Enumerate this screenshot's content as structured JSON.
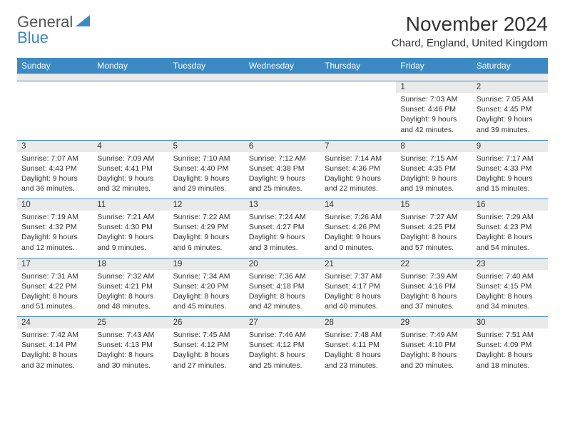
{
  "branding": {
    "logo_text_1": "General",
    "logo_text_2": "Blue",
    "logo_color_gray": "#555555",
    "logo_color_blue": "#3b8ac4"
  },
  "header": {
    "title": "November 2024",
    "location": "Chard, England, United Kingdom"
  },
  "style": {
    "header_bg": "#3b8ac4",
    "header_text": "#ffffff",
    "daynum_bg": "#eaeaea",
    "border_color": "#3b8ac4",
    "body_text": "#333333",
    "page_bg": "#ffffff",
    "title_fontsize": 28,
    "location_fontsize": 15,
    "dayheader_fontsize": 12,
    "daynum_fontsize": 11.5,
    "cell_fontsize": 10.5
  },
  "days_of_week": [
    "Sunday",
    "Monday",
    "Tuesday",
    "Wednesday",
    "Thursday",
    "Friday",
    "Saturday"
  ],
  "weeks": [
    [
      null,
      null,
      null,
      null,
      null,
      {
        "num": "1",
        "sunrise": "Sunrise: 7:03 AM",
        "sunset": "Sunset: 4:46 PM",
        "daylight1": "Daylight: 9 hours",
        "daylight2": "and 42 minutes."
      },
      {
        "num": "2",
        "sunrise": "Sunrise: 7:05 AM",
        "sunset": "Sunset: 4:45 PM",
        "daylight1": "Daylight: 9 hours",
        "daylight2": "and 39 minutes."
      }
    ],
    [
      {
        "num": "3",
        "sunrise": "Sunrise: 7:07 AM",
        "sunset": "Sunset: 4:43 PM",
        "daylight1": "Daylight: 9 hours",
        "daylight2": "and 36 minutes."
      },
      {
        "num": "4",
        "sunrise": "Sunrise: 7:09 AM",
        "sunset": "Sunset: 4:41 PM",
        "daylight1": "Daylight: 9 hours",
        "daylight2": "and 32 minutes."
      },
      {
        "num": "5",
        "sunrise": "Sunrise: 7:10 AM",
        "sunset": "Sunset: 4:40 PM",
        "daylight1": "Daylight: 9 hours",
        "daylight2": "and 29 minutes."
      },
      {
        "num": "6",
        "sunrise": "Sunrise: 7:12 AM",
        "sunset": "Sunset: 4:38 PM",
        "daylight1": "Daylight: 9 hours",
        "daylight2": "and 25 minutes."
      },
      {
        "num": "7",
        "sunrise": "Sunrise: 7:14 AM",
        "sunset": "Sunset: 4:36 PM",
        "daylight1": "Daylight: 9 hours",
        "daylight2": "and 22 minutes."
      },
      {
        "num": "8",
        "sunrise": "Sunrise: 7:15 AM",
        "sunset": "Sunset: 4:35 PM",
        "daylight1": "Daylight: 9 hours",
        "daylight2": "and 19 minutes."
      },
      {
        "num": "9",
        "sunrise": "Sunrise: 7:17 AM",
        "sunset": "Sunset: 4:33 PM",
        "daylight1": "Daylight: 9 hours",
        "daylight2": "and 15 minutes."
      }
    ],
    [
      {
        "num": "10",
        "sunrise": "Sunrise: 7:19 AM",
        "sunset": "Sunset: 4:32 PM",
        "daylight1": "Daylight: 9 hours",
        "daylight2": "and 12 minutes."
      },
      {
        "num": "11",
        "sunrise": "Sunrise: 7:21 AM",
        "sunset": "Sunset: 4:30 PM",
        "daylight1": "Daylight: 9 hours",
        "daylight2": "and 9 minutes."
      },
      {
        "num": "12",
        "sunrise": "Sunrise: 7:22 AM",
        "sunset": "Sunset: 4:29 PM",
        "daylight1": "Daylight: 9 hours",
        "daylight2": "and 6 minutes."
      },
      {
        "num": "13",
        "sunrise": "Sunrise: 7:24 AM",
        "sunset": "Sunset: 4:27 PM",
        "daylight1": "Daylight: 9 hours",
        "daylight2": "and 3 minutes."
      },
      {
        "num": "14",
        "sunrise": "Sunrise: 7:26 AM",
        "sunset": "Sunset: 4:26 PM",
        "daylight1": "Daylight: 9 hours",
        "daylight2": "and 0 minutes."
      },
      {
        "num": "15",
        "sunrise": "Sunrise: 7:27 AM",
        "sunset": "Sunset: 4:25 PM",
        "daylight1": "Daylight: 8 hours",
        "daylight2": "and 57 minutes."
      },
      {
        "num": "16",
        "sunrise": "Sunrise: 7:29 AM",
        "sunset": "Sunset: 4:23 PM",
        "daylight1": "Daylight: 8 hours",
        "daylight2": "and 54 minutes."
      }
    ],
    [
      {
        "num": "17",
        "sunrise": "Sunrise: 7:31 AM",
        "sunset": "Sunset: 4:22 PM",
        "daylight1": "Daylight: 8 hours",
        "daylight2": "and 51 minutes."
      },
      {
        "num": "18",
        "sunrise": "Sunrise: 7:32 AM",
        "sunset": "Sunset: 4:21 PM",
        "daylight1": "Daylight: 8 hours",
        "daylight2": "and 48 minutes."
      },
      {
        "num": "19",
        "sunrise": "Sunrise: 7:34 AM",
        "sunset": "Sunset: 4:20 PM",
        "daylight1": "Daylight: 8 hours",
        "daylight2": "and 45 minutes."
      },
      {
        "num": "20",
        "sunrise": "Sunrise: 7:36 AM",
        "sunset": "Sunset: 4:18 PM",
        "daylight1": "Daylight: 8 hours",
        "daylight2": "and 42 minutes."
      },
      {
        "num": "21",
        "sunrise": "Sunrise: 7:37 AM",
        "sunset": "Sunset: 4:17 PM",
        "daylight1": "Daylight: 8 hours",
        "daylight2": "and 40 minutes."
      },
      {
        "num": "22",
        "sunrise": "Sunrise: 7:39 AM",
        "sunset": "Sunset: 4:16 PM",
        "daylight1": "Daylight: 8 hours",
        "daylight2": "and 37 minutes."
      },
      {
        "num": "23",
        "sunrise": "Sunrise: 7:40 AM",
        "sunset": "Sunset: 4:15 PM",
        "daylight1": "Daylight: 8 hours",
        "daylight2": "and 34 minutes."
      }
    ],
    [
      {
        "num": "24",
        "sunrise": "Sunrise: 7:42 AM",
        "sunset": "Sunset: 4:14 PM",
        "daylight1": "Daylight: 8 hours",
        "daylight2": "and 32 minutes."
      },
      {
        "num": "25",
        "sunrise": "Sunrise: 7:43 AM",
        "sunset": "Sunset: 4:13 PM",
        "daylight1": "Daylight: 8 hours",
        "daylight2": "and 30 minutes."
      },
      {
        "num": "26",
        "sunrise": "Sunrise: 7:45 AM",
        "sunset": "Sunset: 4:12 PM",
        "daylight1": "Daylight: 8 hours",
        "daylight2": "and 27 minutes."
      },
      {
        "num": "27",
        "sunrise": "Sunrise: 7:46 AM",
        "sunset": "Sunset: 4:12 PM",
        "daylight1": "Daylight: 8 hours",
        "daylight2": "and 25 minutes."
      },
      {
        "num": "28",
        "sunrise": "Sunrise: 7:48 AM",
        "sunset": "Sunset: 4:11 PM",
        "daylight1": "Daylight: 8 hours",
        "daylight2": "and 23 minutes."
      },
      {
        "num": "29",
        "sunrise": "Sunrise: 7:49 AM",
        "sunset": "Sunset: 4:10 PM",
        "daylight1": "Daylight: 8 hours",
        "daylight2": "and 20 minutes."
      },
      {
        "num": "30",
        "sunrise": "Sunrise: 7:51 AM",
        "sunset": "Sunset: 4:09 PM",
        "daylight1": "Daylight: 8 hours",
        "daylight2": "and 18 minutes."
      }
    ]
  ]
}
